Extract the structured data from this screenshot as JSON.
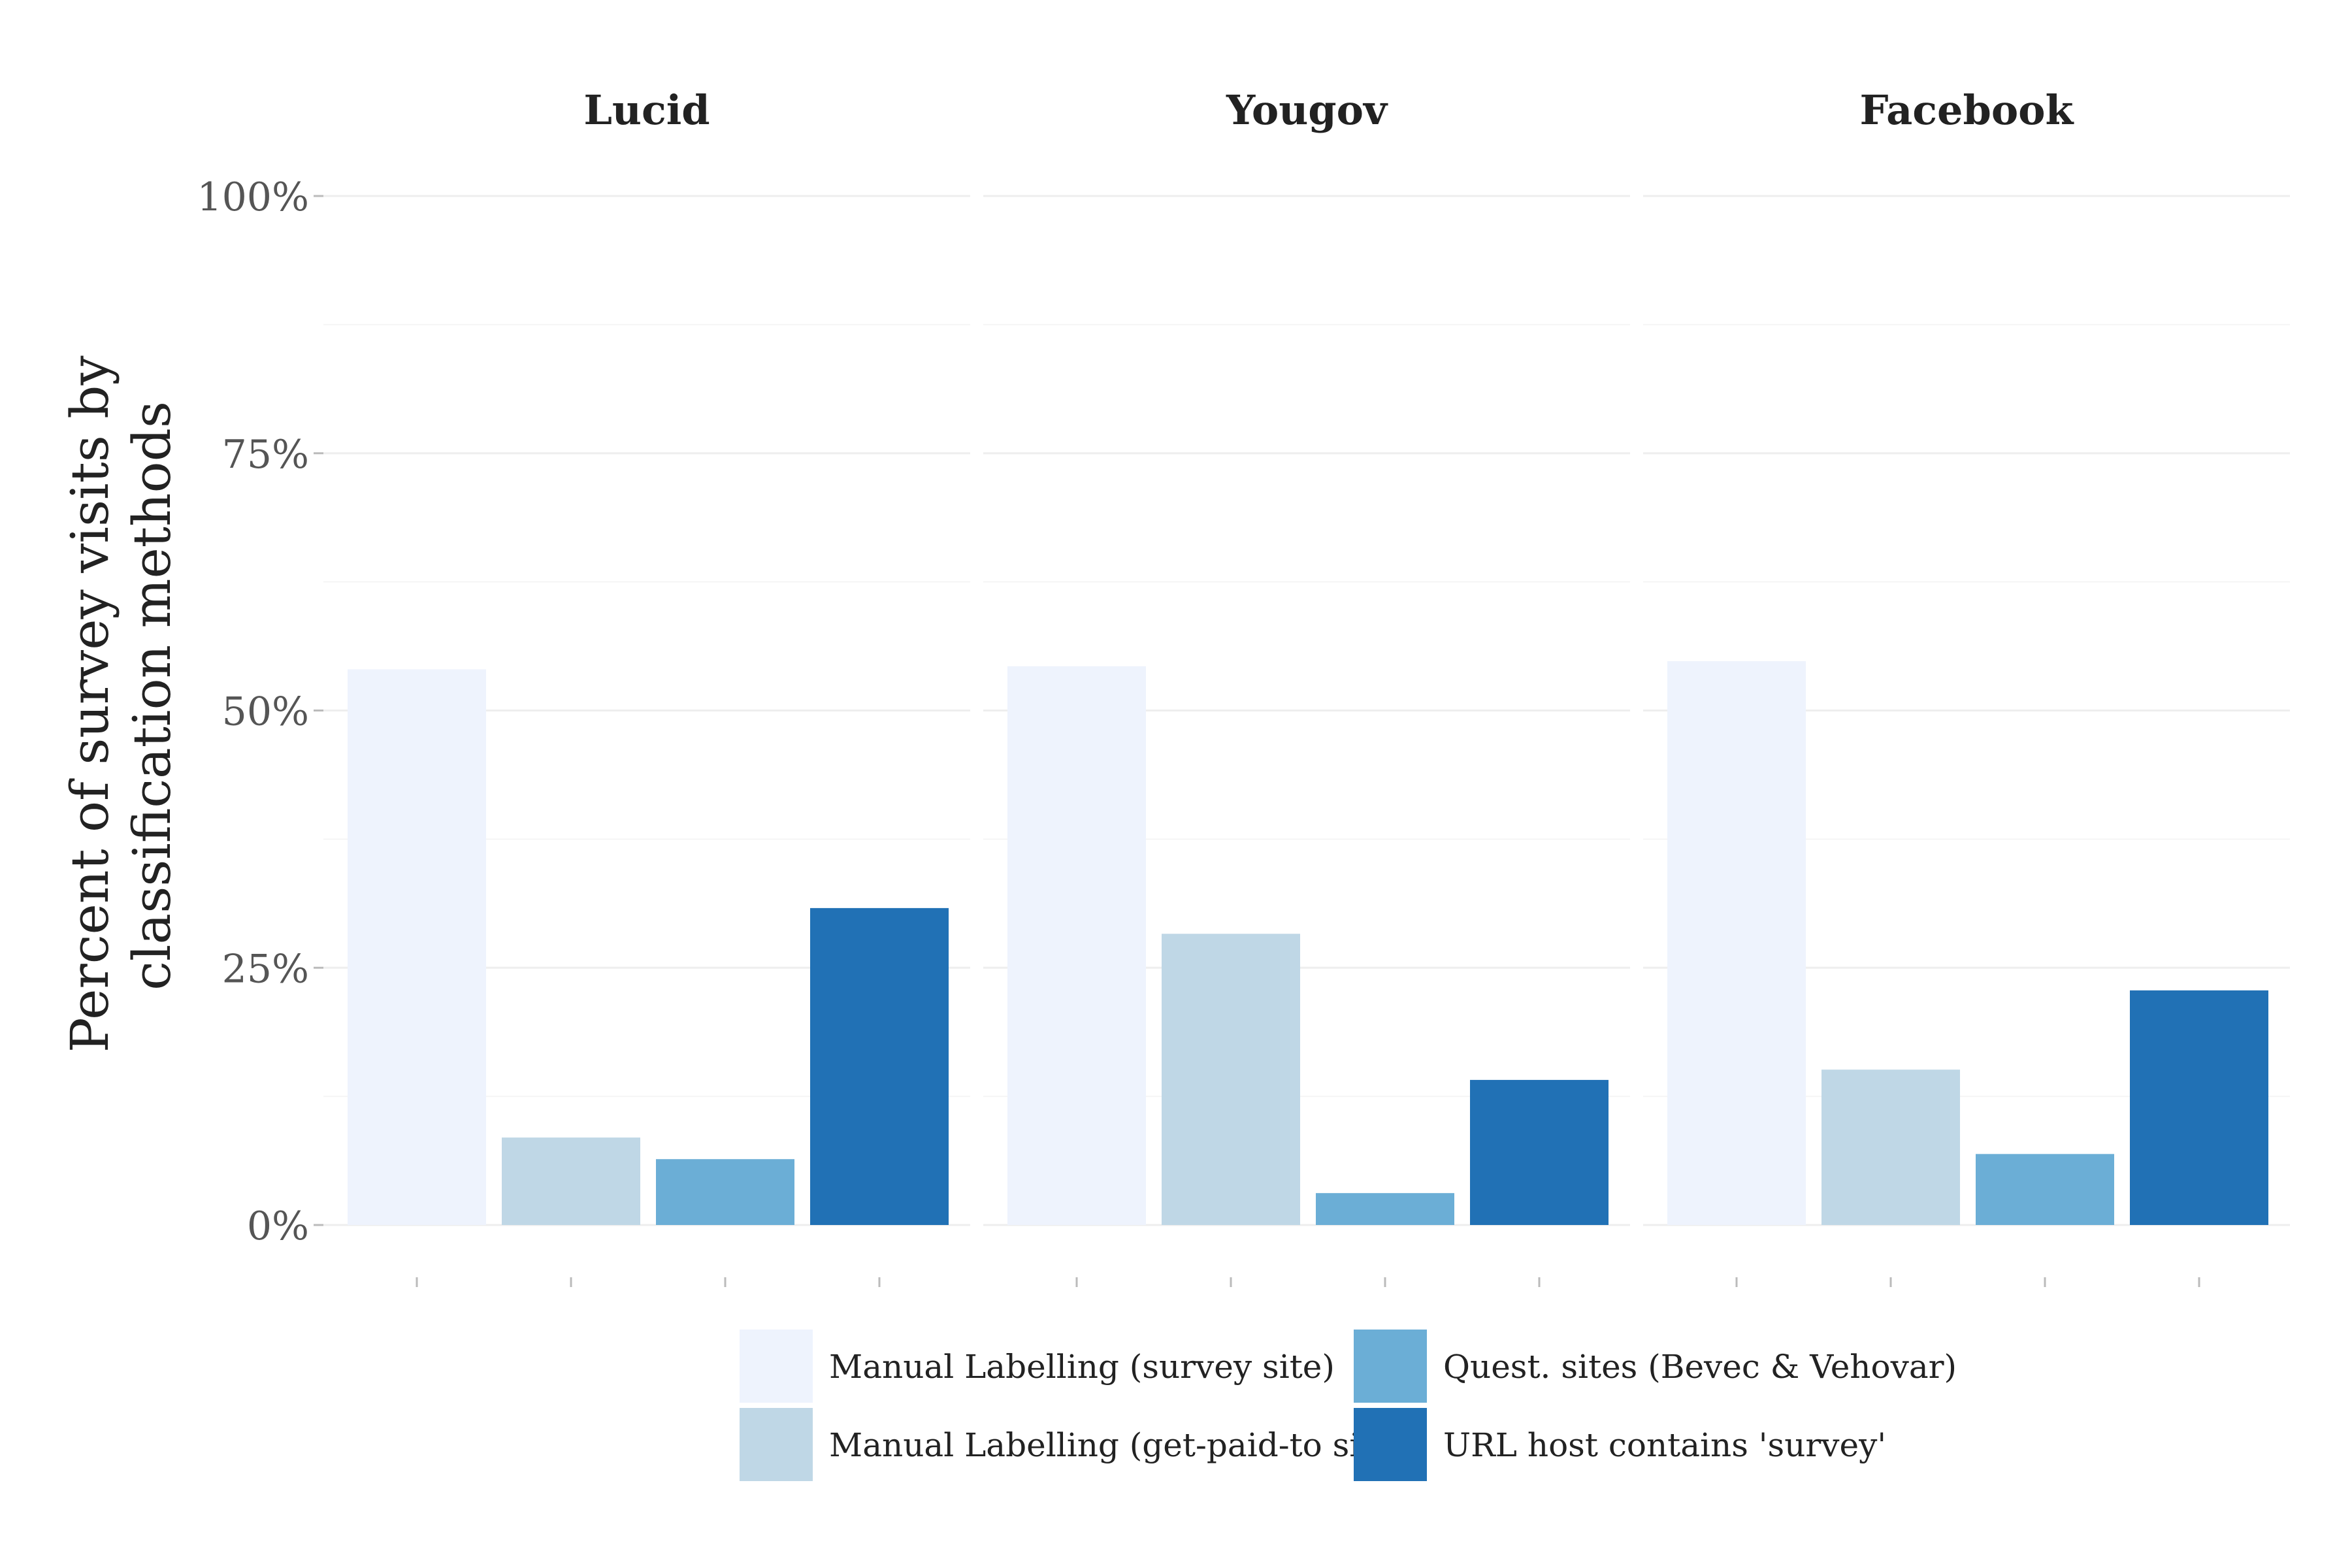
{
  "chart_data": {
    "type": "bar",
    "panels": [
      "Lucid",
      "Yougov",
      "Facebook"
    ],
    "y_label_lines": [
      "Percent of survey visits by",
      "classification methods"
    ],
    "ylim": [
      0,
      100
    ],
    "y_ticks": [
      0,
      25,
      50,
      75,
      100
    ],
    "y_tick_labels": [
      "0%",
      "25%",
      "50%",
      "75%",
      "100%"
    ],
    "grid": true,
    "legend_position": "bottom",
    "series": [
      {
        "name": "Manual Labelling (survey site)",
        "color": "#eef3fd",
        "values": [
          54,
          54.3,
          54.8
        ]
      },
      {
        "name": "Manual Labelling (get-paid-to site)",
        "color": "#bfd7e6",
        "values": [
          8.5,
          28.3,
          15.1
        ]
      },
      {
        "name": "Quest. sites (Bevec & Vehovar)",
        "color": "#6baed6",
        "values": [
          6.4,
          3.1,
          6.9
        ]
      },
      {
        "name": "URL host contains 'survey'",
        "color": "#2171b5",
        "values": [
          30.8,
          14.1,
          22.8
        ]
      }
    ]
  }
}
